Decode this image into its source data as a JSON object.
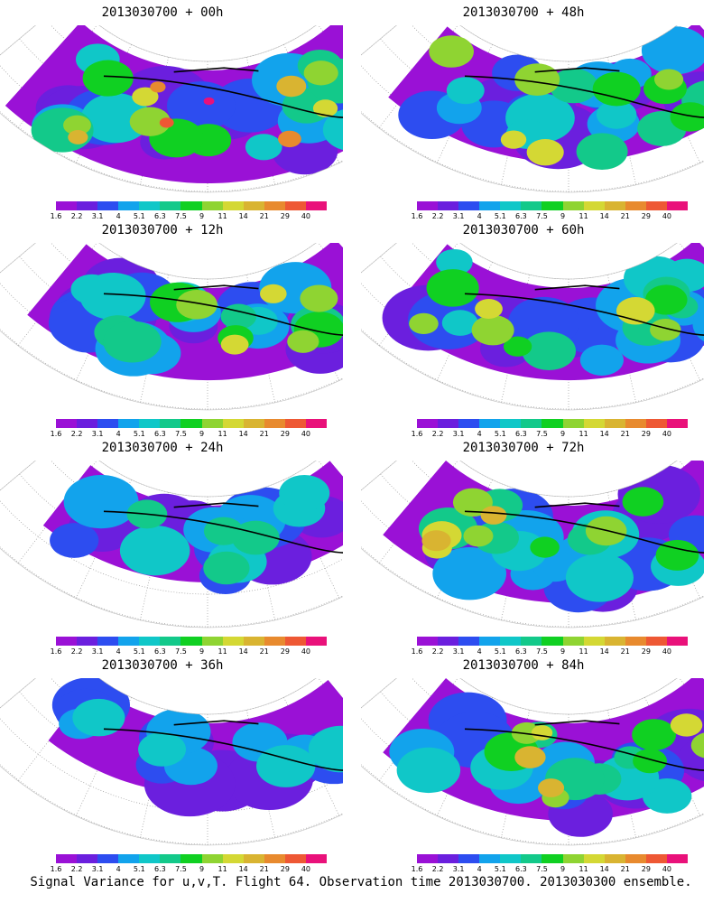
{
  "caption": "Signal Variance for u,v,T. Flight 64. Observation time 2013030700. 2013030300 ensemble.",
  "colorbar": {
    "labels": [
      "1.6",
      "2.2",
      "3.1",
      "4",
      "5.1",
      "6.3",
      "7.5",
      "9",
      "11",
      "14",
      "21",
      "29",
      "40"
    ],
    "colors": [
      "#9a11d6",
      "#6b1fde",
      "#2d4df0",
      "#12a3ec",
      "#10c7c8",
      "#13c98a",
      "#10d022",
      "#8fd432",
      "#d4d834",
      "#d9b431",
      "#e88a2e",
      "#ee5834",
      "#e9117a"
    ]
  },
  "panels": [
    {
      "title": "2013030700 + 00h",
      "max_level": 12
    },
    {
      "title": "2013030700 + 48h",
      "max_level": 8
    },
    {
      "title": "2013030700 + 12h",
      "max_level": 8
    },
    {
      "title": "2013030700 + 60h",
      "max_level": 8
    },
    {
      "title": "2013030700 + 24h",
      "max_level": 5
    },
    {
      "title": "2013030700 + 72h",
      "max_level": 9
    },
    {
      "title": "2013030700 + 36h",
      "max_level": 4
    },
    {
      "title": "2013030700 + 84h",
      "max_level": 9
    }
  ]
}
